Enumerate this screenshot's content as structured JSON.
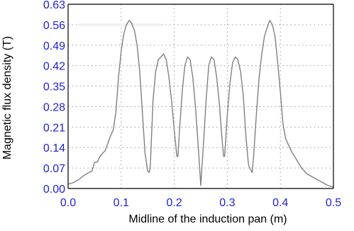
{
  "chart_data": {
    "type": "line",
    "title": "",
    "xlabel": "Midline of the induction pan (m)",
    "ylabel": "Magnetic flux density (T)",
    "xlim": [
      0,
      0.5
    ],
    "ylim": [
      0,
      0.63
    ],
    "x_ticks": [
      "0.0",
      "0.1",
      "0.2",
      "0.3",
      "0.4",
      "0.5"
    ],
    "y_ticks": [
      "0.00",
      "0.07",
      "0.14",
      "0.21",
      "0.28",
      "0.35",
      "0.42",
      "0.49",
      "0.56",
      "0.63"
    ],
    "grid": "dotted",
    "legend": "none",
    "colors": {
      "line": "#808080",
      "tick_labels": "#1f1fd6",
      "axis_title": "#000000",
      "grid": "#9a9a9a",
      "frame": "#000000"
    },
    "series": [
      {
        "values_x": [
          0.0,
          0.01,
          0.02,
          0.03,
          0.04,
          0.045,
          0.05,
          0.055,
          0.06,
          0.07,
          0.08,
          0.085,
          0.09,
          0.095,
          0.1,
          0.105,
          0.11,
          0.115,
          0.12,
          0.125,
          0.13,
          0.135,
          0.14,
          0.145,
          0.15,
          0.153,
          0.155,
          0.16,
          0.165,
          0.17,
          0.175,
          0.18,
          0.185,
          0.19,
          0.195,
          0.2,
          0.205,
          0.207,
          0.21,
          0.215,
          0.22,
          0.225,
          0.23,
          0.235,
          0.24,
          0.245,
          0.25,
          0.255,
          0.26,
          0.265,
          0.27,
          0.275,
          0.28,
          0.285,
          0.29,
          0.293,
          0.295,
          0.3,
          0.305,
          0.31,
          0.315,
          0.32,
          0.325,
          0.33,
          0.335,
          0.34,
          0.345,
          0.347,
          0.35,
          0.355,
          0.36,
          0.365,
          0.37,
          0.375,
          0.38,
          0.385,
          0.39,
          0.395,
          0.4,
          0.405,
          0.41,
          0.415,
          0.42,
          0.43,
          0.44,
          0.45,
          0.46,
          0.47,
          0.48,
          0.49,
          0.5
        ],
        "values_y": [
          0.015,
          0.02,
          0.03,
          0.045,
          0.055,
          0.06,
          0.09,
          0.09,
          0.11,
          0.13,
          0.18,
          0.2,
          0.26,
          0.38,
          0.47,
          0.53,
          0.56,
          0.575,
          0.565,
          0.54,
          0.49,
          0.4,
          0.26,
          0.12,
          0.06,
          0.055,
          0.08,
          0.3,
          0.4,
          0.44,
          0.45,
          0.46,
          0.44,
          0.38,
          0.3,
          0.2,
          0.11,
          0.11,
          0.2,
          0.33,
          0.42,
          0.45,
          0.44,
          0.38,
          0.28,
          0.15,
          0.01,
          0.15,
          0.3,
          0.42,
          0.45,
          0.44,
          0.38,
          0.29,
          0.17,
          0.11,
          0.11,
          0.25,
          0.36,
          0.43,
          0.45,
          0.44,
          0.4,
          0.32,
          0.18,
          0.08,
          0.06,
          0.055,
          0.12,
          0.26,
          0.38,
          0.46,
          0.52,
          0.55,
          0.575,
          0.56,
          0.52,
          0.43,
          0.33,
          0.22,
          0.17,
          0.15,
          0.13,
          0.1,
          0.07,
          0.05,
          0.04,
          0.03,
          0.02,
          0.01,
          0.005
        ]
      }
    ]
  }
}
